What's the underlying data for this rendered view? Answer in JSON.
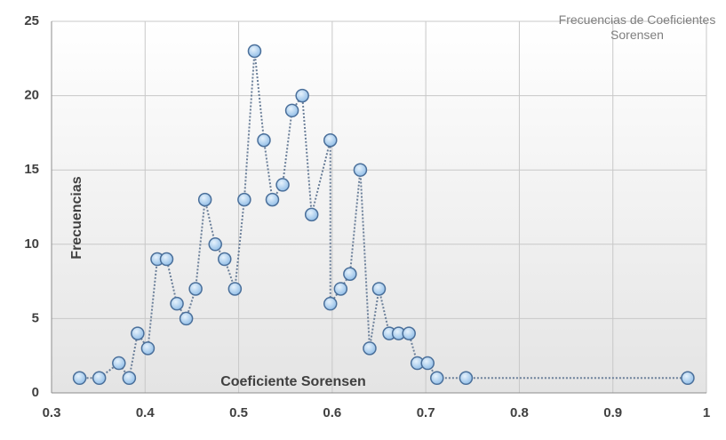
{
  "chart_data": {
    "type": "scatter-line",
    "title": "Frecuencias de Coeficientes Sorensen",
    "x_label": "Coeficiente Sorensen",
    "y_label": "Frecuencias",
    "x": [
      0.33,
      0.351,
      0.372,
      0.383,
      0.392,
      0.403,
      0.413,
      0.423,
      0.434,
      0.444,
      0.454,
      0.464,
      0.475,
      0.485,
      0.496,
      0.506,
      0.517,
      0.527,
      0.536,
      0.547,
      0.557,
      0.568,
      0.578,
      0.598,
      0.598,
      0.609,
      0.619,
      0.63,
      0.64,
      0.65,
      0.661,
      0.671,
      0.682,
      0.691,
      0.702,
      0.712,
      0.743,
      0.98
    ],
    "series": [
      {
        "name": "Frecuencias",
        "color": "#6b7f99",
        "values": [
          1,
          1,
          2,
          1,
          4,
          3,
          9,
          9,
          6,
          5,
          7,
          13,
          10,
          9,
          7,
          13,
          23,
          17,
          13,
          14,
          19,
          20,
          12,
          17,
          6,
          7,
          8,
          15,
          3,
          7,
          4,
          4,
          4,
          2,
          2,
          1,
          1,
          1
        ]
      }
    ],
    "xlim": [
      0.3,
      1
    ],
    "xticks": [
      0.3,
      0.4,
      0.5,
      0.6,
      0.7,
      0.8,
      0.9,
      1
    ],
    "ylim": [
      0,
      25
    ],
    "yticks": [
      0,
      5,
      10,
      15,
      20,
      25
    ],
    "grid": true
  }
}
